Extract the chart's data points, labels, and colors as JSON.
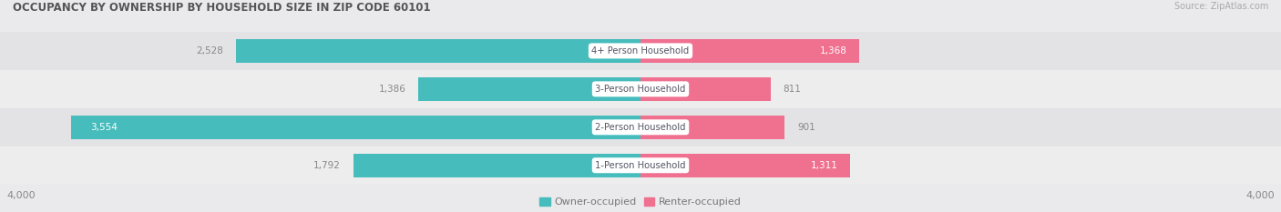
{
  "title": "OCCUPANCY BY OWNERSHIP BY HOUSEHOLD SIZE IN ZIP CODE 60101",
  "source": "Source: ZipAtlas.com",
  "categories": [
    "1-Person Household",
    "2-Person Household",
    "3-Person Household",
    "4+ Person Household"
  ],
  "owner_values": [
    1792,
    3554,
    1386,
    2528
  ],
  "renter_values": [
    1311,
    901,
    811,
    1368
  ],
  "axis_max": 4000,
  "owner_color": "#46BCBC",
  "renter_color": "#F07090",
  "row_colors": [
    "#EDEDEE",
    "#E3E3E5"
  ],
  "bg_color": "#EAEAEC",
  "title_color": "#555555",
  "label_color": "#777777",
  "value_white": "#FFFFFF",
  "value_dark": "#888888",
  "cat_label_color": "#555566",
  "legend_owner": "Owner-occupied",
  "legend_renter": "Renter-occupied",
  "axis_tick_color": "#888888"
}
